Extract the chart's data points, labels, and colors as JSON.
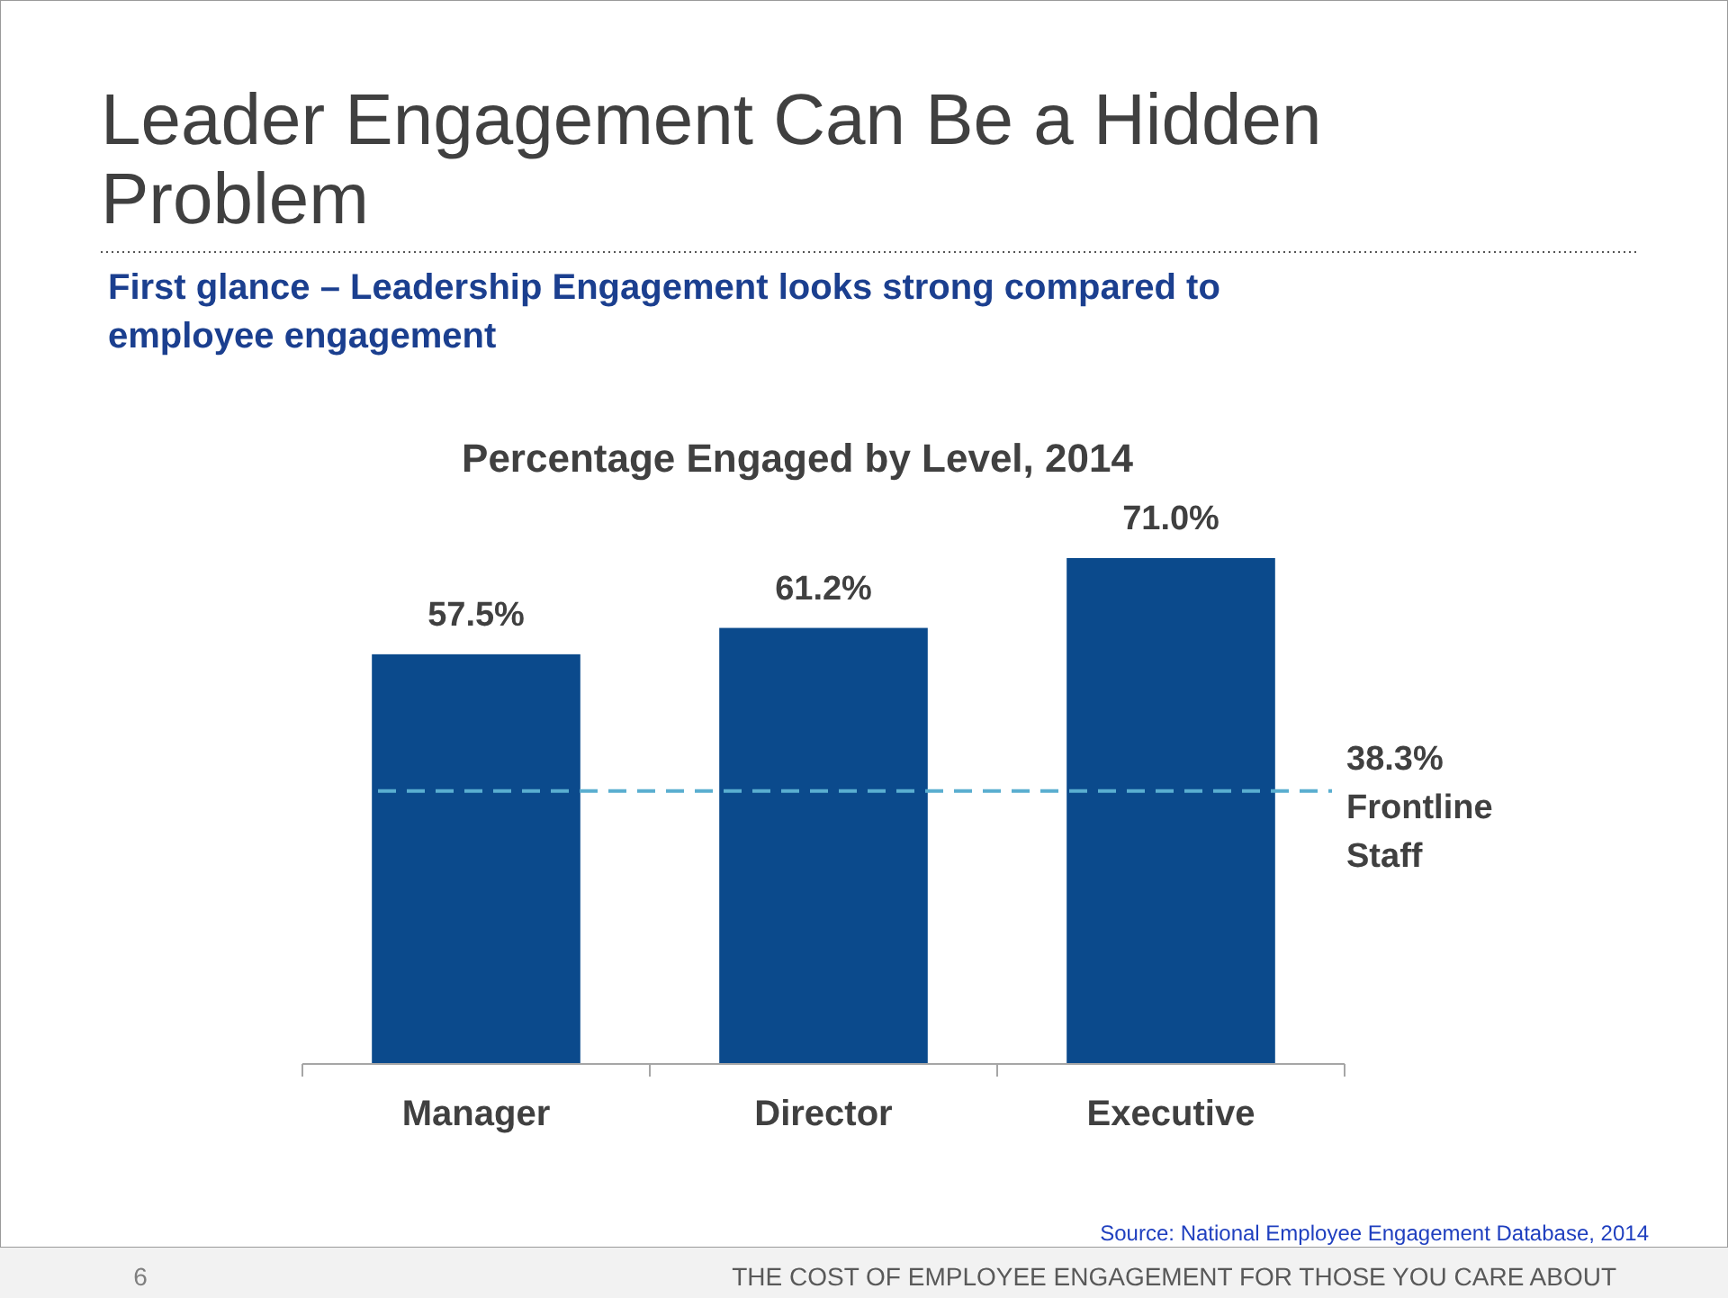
{
  "chart_data": {
    "type": "bar",
    "title": "Leader Engagement Can Be a Hidden Problem",
    "subtitle": "First glance – Leadership Engagement looks strong compared to employee engagement",
    "xlabel": "Percentage Engaged by Level, 2014",
    "categories": [
      "Manager",
      "Director",
      "Executive"
    ],
    "values": [
      57.5,
      61.2,
      71.0
    ],
    "color": "#0b4a8c",
    "value_labels": [
      "57.5%",
      "61.2%",
      "71.0%"
    ],
    "ref_lines": [
      {
        "axis": "y",
        "value": 38.3,
        "label": "38.3% Frontline Staff",
        "color": "#5aaed0",
        "line_style": "dashed"
      }
    ],
    "annotations": [
      "Source: National Employee Engagement Database, 2014",
      "6",
      "THE COST OF EMPLOYEE ENGAGEMENT FOR THOSE YOU CARE ABOUT"
    ]
  }
}
